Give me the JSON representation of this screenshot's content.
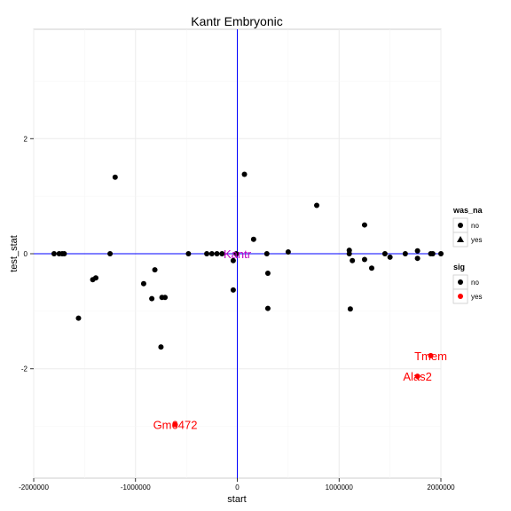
{
  "chart_data": {
    "type": "scatter",
    "title": "Kantr Embryonic",
    "xlabel": "start",
    "ylabel": "test_stat",
    "xlim": [
      -2000000,
      2000000
    ],
    "ylim": [
      -3.9,
      3.9
    ],
    "xticks": [
      {
        "value": -2000000,
        "label": "-2000000"
      },
      {
        "value": -1000000,
        "label": "-1000000"
      },
      {
        "value": 0,
        "label": "0"
      },
      {
        "value": 1000000,
        "label": "1000000"
      },
      {
        "value": 2000000,
        "label": "2000000"
      }
    ],
    "yticks": [
      {
        "value": -2,
        "label": "-2"
      },
      {
        "value": 0,
        "label": "0"
      },
      {
        "value": 2,
        "label": "2"
      }
    ],
    "grid": true,
    "reference_lines": {
      "x": 0,
      "y": 0,
      "color": "#0000ff"
    },
    "colors": {
      "sig_no": "#000000",
      "sig_yes": "#ff0000",
      "reference": "#0000ff",
      "label_target": "#c000c0",
      "panel_border": "#cccccc"
    },
    "points": [
      {
        "x": -1800000,
        "y": 0.0,
        "sig": "no",
        "was_na": "no"
      },
      {
        "x": -1750000,
        "y": 0.0,
        "sig": "no",
        "was_na": "no"
      },
      {
        "x": -1720000,
        "y": 0.0,
        "sig": "no",
        "was_na": "no"
      },
      {
        "x": -1700000,
        "y": 0.0,
        "sig": "no",
        "was_na": "no"
      },
      {
        "x": -1560000,
        "y": -1.12,
        "sig": "no",
        "was_na": "no"
      },
      {
        "x": -1420000,
        "y": -0.45,
        "sig": "no",
        "was_na": "no"
      },
      {
        "x": -1390000,
        "y": -0.42,
        "sig": "no",
        "was_na": "no"
      },
      {
        "x": -1250000,
        "y": 0.0,
        "sig": "no",
        "was_na": "no"
      },
      {
        "x": -1200000,
        "y": 1.33,
        "sig": "no",
        "was_na": "no"
      },
      {
        "x": -920000,
        "y": -0.52,
        "sig": "no",
        "was_na": "no"
      },
      {
        "x": -840000,
        "y": -0.78,
        "sig": "no",
        "was_na": "no"
      },
      {
        "x": -810000,
        "y": -0.28,
        "sig": "no",
        "was_na": "no"
      },
      {
        "x": -750000,
        "y": -1.62,
        "sig": "no",
        "was_na": "no"
      },
      {
        "x": -740000,
        "y": -0.76,
        "sig": "no",
        "was_na": "no"
      },
      {
        "x": -710000,
        "y": -0.76,
        "sig": "no",
        "was_na": "no"
      },
      {
        "x": -480000,
        "y": 0.0,
        "sig": "no",
        "was_na": "no"
      },
      {
        "x": -300000,
        "y": 0.0,
        "sig": "no",
        "was_na": "no"
      },
      {
        "x": -250000,
        "y": 0.0,
        "sig": "no",
        "was_na": "no"
      },
      {
        "x": -200000,
        "y": 0.0,
        "sig": "no",
        "was_na": "no"
      },
      {
        "x": -150000,
        "y": 0.0,
        "sig": "no",
        "was_na": "no"
      },
      {
        "x": -40000,
        "y": -0.12,
        "sig": "no",
        "was_na": "no"
      },
      {
        "x": -40000,
        "y": -0.63,
        "sig": "no",
        "was_na": "no"
      },
      {
        "x": 70000,
        "y": 1.38,
        "sig": "no",
        "was_na": "no"
      },
      {
        "x": 160000,
        "y": 0.25,
        "sig": "no",
        "was_na": "no"
      },
      {
        "x": 290000,
        "y": 0.0,
        "sig": "no",
        "was_na": "no"
      },
      {
        "x": 300000,
        "y": -0.34,
        "sig": "no",
        "was_na": "no"
      },
      {
        "x": 300000,
        "y": -0.95,
        "sig": "no",
        "was_na": "no"
      },
      {
        "x": 500000,
        "y": 0.03,
        "sig": "no",
        "was_na": "no"
      },
      {
        "x": 780000,
        "y": 0.84,
        "sig": "no",
        "was_na": "no"
      },
      {
        "x": 1100000,
        "y": 0.06,
        "sig": "no",
        "was_na": "no"
      },
      {
        "x": 1100000,
        "y": 0.0,
        "sig": "no",
        "was_na": "no"
      },
      {
        "x": 1110000,
        "y": -0.96,
        "sig": "no",
        "was_na": "no"
      },
      {
        "x": 1130000,
        "y": -0.12,
        "sig": "no",
        "was_na": "no"
      },
      {
        "x": 1250000,
        "y": 0.5,
        "sig": "no",
        "was_na": "no"
      },
      {
        "x": 1250000,
        "y": -0.1,
        "sig": "no",
        "was_na": "no"
      },
      {
        "x": 1320000,
        "y": -0.25,
        "sig": "no",
        "was_na": "no"
      },
      {
        "x": 1450000,
        "y": 0.0,
        "sig": "no",
        "was_na": "no"
      },
      {
        "x": 1500000,
        "y": -0.06,
        "sig": "no",
        "was_na": "no"
      },
      {
        "x": 1650000,
        "y": 0.0,
        "sig": "no",
        "was_na": "no"
      },
      {
        "x": 1770000,
        "y": 0.05,
        "sig": "no",
        "was_na": "no"
      },
      {
        "x": 1770000,
        "y": -0.08,
        "sig": "no",
        "was_na": "no"
      },
      {
        "x": 1900000,
        "y": 0.0,
        "sig": "no",
        "was_na": "no"
      },
      {
        "x": 1920000,
        "y": 0.0,
        "sig": "no",
        "was_na": "no"
      },
      {
        "x": 2000000,
        "y": 0.0,
        "sig": "no",
        "was_na": "no"
      },
      {
        "x": -10000,
        "y": 0.0,
        "sig": "no",
        "was_na": "no"
      },
      {
        "x": -610000,
        "y": -2.97,
        "sig": "yes",
        "was_na": "no"
      },
      {
        "x": 1770000,
        "y": -2.13,
        "sig": "yes",
        "was_na": "no"
      },
      {
        "x": 1900000,
        "y": -1.77,
        "sig": "yes",
        "was_na": "no"
      }
    ],
    "annotations": [
      {
        "text": "Kantr",
        "x": 0,
        "y": 0.0,
        "color": "#c000c0"
      },
      {
        "text": "Gm6472",
        "x": -610000,
        "y": -2.97,
        "color": "#ff0000"
      },
      {
        "text": "Alas2",
        "x": 1770000,
        "y": -2.13,
        "color": "#ff0000"
      },
      {
        "text": "Tmem",
        "x": 1900000,
        "y": -1.77,
        "color": "#ff0000"
      }
    ],
    "legends": [
      {
        "title": "was_na",
        "items": [
          {
            "label": "no",
            "shape": "circle",
            "color": "#000000"
          },
          {
            "label": "yes",
            "shape": "triangle",
            "color": "#000000"
          }
        ]
      },
      {
        "title": "sig",
        "items": [
          {
            "label": "no",
            "shape": "circle",
            "color": "#000000"
          },
          {
            "label": "yes",
            "shape": "circle",
            "color": "#ff0000"
          }
        ]
      }
    ],
    "legend_position": "right"
  }
}
